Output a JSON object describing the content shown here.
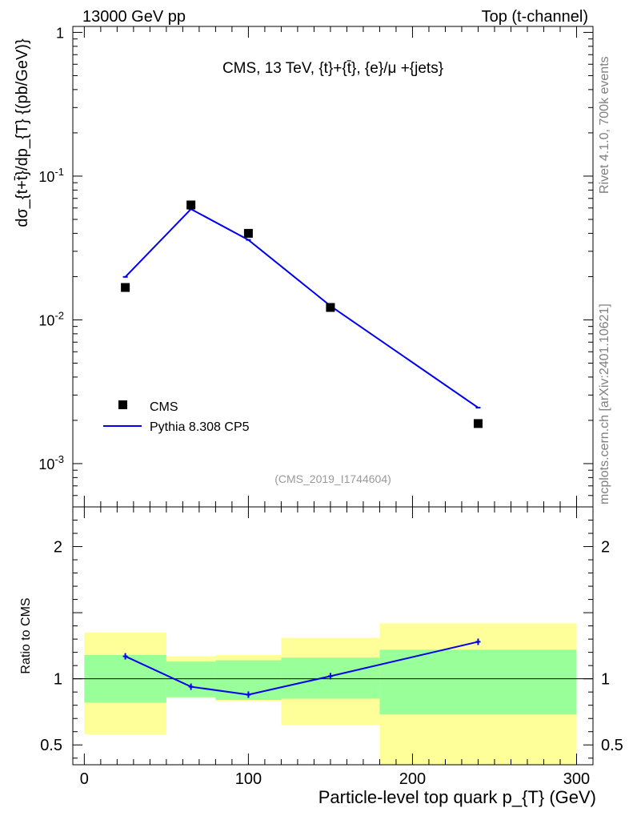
{
  "header": {
    "left": "13000 GeV pp",
    "right": "Top (t-channel)"
  },
  "side_labels": {
    "rivet": "Rivet 4.1.0,  700k events",
    "mcplots": "mcplots.cern.ch [arXiv:2401.10621]"
  },
  "colors": {
    "mc_line": "#0000ee",
    "band_inner": "#99ff99",
    "band_outer": "#ffff99",
    "data_marker": "#000000",
    "watermark": "#999999"
  },
  "chart_data": [
    {
      "type": "line",
      "panel": "main",
      "title": "CMS, 13 TeV, {t}+{t̄}, {e}/μ +{jets}",
      "ylabel": "dσ_{t+t̄}/dp_{T}  {(pb/GeV)}",
      "yscale": "log",
      "ylim": [
        0.0005,
        1.1
      ],
      "xlim": [
        -7,
        310
      ],
      "ytick_labels": [
        "1",
        "10^-1",
        "10^-2",
        "10^-3"
      ],
      "ytick_values": [
        1,
        0.1,
        0.01,
        0.001
      ],
      "watermark": "(CMS_2019_I1744604)",
      "legend": [
        {
          "label": "CMS",
          "marker": "square"
        },
        {
          "label": "Pythia 8.308 CP5",
          "marker": "line"
        }
      ],
      "legend_position": "bottom-left",
      "series": [
        {
          "name": "CMS",
          "x": [
            25,
            65,
            100,
            150,
            240
          ],
          "y": [
            0.0168,
            0.063,
            0.04,
            0.0122,
            0.0019
          ]
        },
        {
          "name": "Pythia 8.308 CP5",
          "x": [
            25,
            65,
            100,
            150,
            240
          ],
          "y": [
            0.0199,
            0.059,
            0.036,
            0.0125,
            0.00245
          ]
        }
      ]
    },
    {
      "type": "line",
      "panel": "ratio",
      "ylabel": "Ratio to CMS",
      "xlabel": "Particle-level top quark p_{T} (GeV)",
      "xlim": [
        -7,
        310
      ],
      "ylim": [
        0.35,
        2.3
      ],
      "xtick_labels": [
        "0",
        "100",
        "200",
        "300"
      ],
      "xtick_values": [
        0,
        100,
        200,
        300
      ],
      "ytick_labels": [
        "0.5",
        "1",
        "2"
      ],
      "ytick_values": [
        0.5,
        1,
        2
      ],
      "bins": [
        {
          "low": 0,
          "high": 50,
          "inner": [
            0.82,
            1.18
          ],
          "outer": [
            0.58,
            1.35
          ]
        },
        {
          "low": 50,
          "high": 80,
          "inner": [
            0.86,
            1.13
          ],
          "outer": [
            0.86,
            1.17
          ]
        },
        {
          "low": 80,
          "high": 120,
          "inner": [
            0.84,
            1.14
          ],
          "outer": [
            0.83,
            1.18
          ]
        },
        {
          "low": 120,
          "high": 180,
          "inner": [
            0.85,
            1.16
          ],
          "outer": [
            0.65,
            1.31
          ]
        },
        {
          "low": 180,
          "high": 300,
          "inner": [
            0.73,
            1.22
          ],
          "outer": [
            0.35,
            1.42
          ]
        }
      ],
      "series": [
        {
          "name": "Pythia 8.308 CP5",
          "x": [
            25,
            65,
            100,
            150,
            240
          ],
          "y": [
            1.17,
            0.94,
            0.88,
            1.02,
            1.28
          ]
        }
      ]
    }
  ]
}
